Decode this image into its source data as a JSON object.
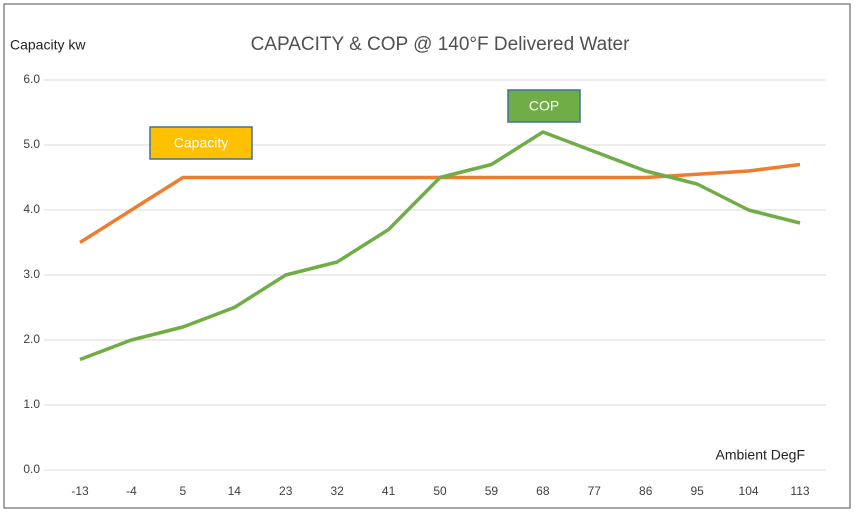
{
  "chart_data": {
    "type": "line",
    "title": "CAPACITY & COP @ 140°F Delivered Water",
    "y_label": "Capacity kw",
    "x_label": "Ambient DegF",
    "categories": [
      "-13",
      "-4",
      "5",
      "14",
      "23",
      "32",
      "41",
      "50",
      "59",
      "68",
      "77",
      "86",
      "95",
      "104",
      "113"
    ],
    "series": [
      {
        "name": "Capacity",
        "color": "#ed7d31",
        "values": [
          3.5,
          4.0,
          4.5,
          4.5,
          4.5,
          4.5,
          4.5,
          4.5,
          4.5,
          4.5,
          4.5,
          4.5,
          4.55,
          4.6,
          4.7
        ]
      },
      {
        "name": "COP",
        "color": "#70ad47",
        "values": [
          1.7,
          2.0,
          2.2,
          2.5,
          3.0,
          3.2,
          3.7,
          4.5,
          4.7,
          5.2,
          4.9,
          4.6,
          4.4,
          4.0,
          3.8
        ]
      }
    ],
    "ylim": [
      0,
      6
    ],
    "yticks": [
      {
        "value": 0,
        "label": "0.0"
      },
      {
        "value": 1,
        "label": "1.0"
      },
      {
        "value": 2,
        "label": "2.0"
      },
      {
        "value": 3,
        "label": "3.0"
      },
      {
        "value": 4,
        "label": "4.0"
      },
      {
        "value": 5,
        "label": "5.0"
      },
      {
        "value": 6,
        "label": "6.0"
      }
    ],
    "grid": true
  }
}
